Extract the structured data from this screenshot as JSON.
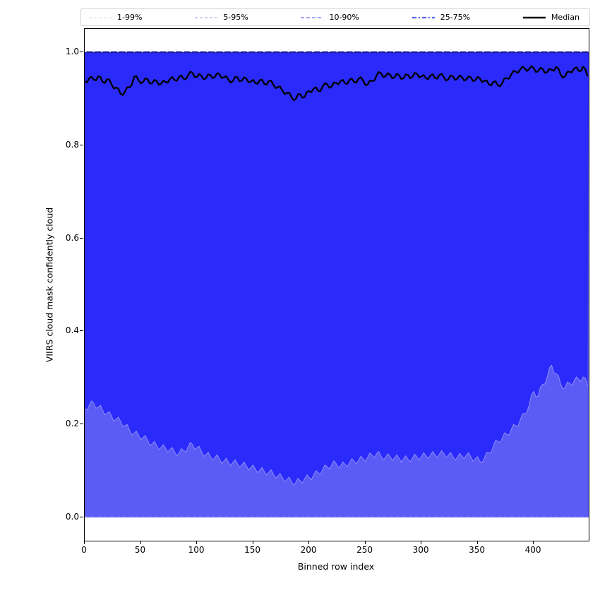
{
  "figure": {
    "background": "#ffffff"
  },
  "legend": {
    "items": [
      {
        "label": "1-99%",
        "color": "#d9d9f0",
        "dash": "4 3",
        "width": 1.1
      },
      {
        "label": "5-95%",
        "color": "#b2b2ec",
        "dash": "4 3",
        "width": 1.2
      },
      {
        "label": "10-90%",
        "color": "#8c8cf0",
        "dash": "5 3",
        "width": 1.5
      },
      {
        "label": "25-75%",
        "color": "#6060ee",
        "dash": "6 3 2 3",
        "width": 2.2
      },
      {
        "label": "Median",
        "color": "#000000",
        "dash": "",
        "width": 2.6
      }
    ]
  },
  "axes": {
    "xlabel": "Binned row index",
    "ylabel": "VIIRS cloud mask confidently cloud",
    "xticks": [
      0,
      50,
      100,
      150,
      200,
      250,
      300,
      350,
      400
    ],
    "yticks": [
      "0.0",
      "0.2",
      "0.4",
      "0.6",
      "0.8",
      "1.0"
    ],
    "xlim": [
      0,
      449
    ],
    "ylim": [
      -0.05,
      1.05
    ]
  },
  "colors": {
    "band_outer_fill": "#5b5bf6",
    "band_inner_fill": "#2a2bfa",
    "inner_edge_stroke": "#9a9af2",
    "bottom_edge_dash": "#c2c2fb",
    "top_edge_line": "#1e1e96",
    "top_edge_dash_gap": "#ffffff",
    "median_line": "#000000"
  },
  "chart_data": {
    "type": "area",
    "title": "",
    "xlabel": "Binned row index",
    "ylabel": "VIIRS cloud mask confidently cloud",
    "xlim": [
      0,
      449
    ],
    "ylim": [
      -0.05,
      1.05
    ],
    "grid": false,
    "legend_position": "top",
    "x": [
      0,
      4,
      8,
      12,
      16,
      20,
      24,
      28,
      32,
      36,
      40,
      44,
      48,
      52,
      56,
      60,
      64,
      68,
      72,
      76,
      80,
      84,
      88,
      92,
      96,
      100,
      104,
      108,
      112,
      116,
      120,
      124,
      128,
      132,
      136,
      140,
      144,
      148,
      152,
      156,
      160,
      164,
      168,
      172,
      176,
      180,
      184,
      188,
      192,
      196,
      200,
      204,
      208,
      212,
      216,
      220,
      224,
      228,
      232,
      236,
      240,
      244,
      248,
      252,
      256,
      260,
      264,
      268,
      272,
      276,
      280,
      284,
      288,
      292,
      296,
      300,
      304,
      308,
      312,
      316,
      320,
      324,
      328,
      332,
      336,
      340,
      344,
      348,
      352,
      356,
      360,
      364,
      368,
      372,
      376,
      380,
      384,
      388,
      392,
      396,
      400,
      404,
      408,
      412,
      416,
      420,
      424,
      428,
      432,
      436,
      440,
      444,
      448
    ],
    "bands": [
      {
        "name": "1-99%",
        "lower": 0.0,
        "upper": 1.0
      },
      {
        "name": "5-95%",
        "lower": 0.0,
        "upper": 1.0
      },
      {
        "name": "10-90%",
        "lower": 0.0,
        "upper": 1.0
      },
      {
        "name": "25-75%",
        "upper": 1.0,
        "lower": [
          0.234,
          0.241,
          0.246,
          0.237,
          0.231,
          0.224,
          0.217,
          0.211,
          0.206,
          0.198,
          0.187,
          0.181,
          0.176,
          0.172,
          0.166,
          0.158,
          0.155,
          0.15,
          0.149,
          0.146,
          0.141,
          0.138,
          0.144,
          0.151,
          0.157,
          0.15,
          0.142,
          0.135,
          0.131,
          0.129,
          0.126,
          0.121,
          0.119,
          0.118,
          0.116,
          0.113,
          0.111,
          0.107,
          0.104,
          0.102,
          0.099,
          0.097,
          0.094,
          0.089,
          0.086,
          0.081,
          0.078,
          0.075,
          0.079,
          0.083,
          0.086,
          0.091,
          0.096,
          0.103,
          0.109,
          0.113,
          0.116,
          0.111,
          0.114,
          0.118,
          0.121,
          0.123,
          0.126,
          0.129,
          0.134,
          0.137,
          0.132,
          0.129,
          0.131,
          0.128,
          0.127,
          0.126,
          0.125,
          0.128,
          0.13,
          0.131,
          0.133,
          0.134,
          0.135,
          0.136,
          0.137,
          0.134,
          0.131,
          0.129,
          0.132,
          0.134,
          0.13,
          0.126,
          0.121,
          0.127,
          0.139,
          0.153,
          0.164,
          0.171,
          0.179,
          0.189,
          0.197,
          0.209,
          0.223,
          0.242,
          0.271,
          0.261,
          0.286,
          0.302,
          0.327,
          0.309,
          0.287,
          0.279,
          0.289,
          0.293,
          0.297,
          0.302,
          0.283
        ]
      }
    ],
    "median": [
      0.937,
      0.944,
      0.941,
      0.948,
      0.936,
      0.942,
      0.93,
      0.924,
      0.91,
      0.916,
      0.924,
      0.947,
      0.94,
      0.936,
      0.942,
      0.933,
      0.938,
      0.932,
      0.936,
      0.943,
      0.94,
      0.947,
      0.943,
      0.95,
      0.956,
      0.947,
      0.949,
      0.944,
      0.951,
      0.947,
      0.953,
      0.946,
      0.941,
      0.938,
      0.946,
      0.939,
      0.943,
      0.937,
      0.934,
      0.94,
      0.932,
      0.938,
      0.93,
      0.925,
      0.918,
      0.912,
      0.905,
      0.899,
      0.91,
      0.904,
      0.916,
      0.922,
      0.917,
      0.926,
      0.931,
      0.926,
      0.934,
      0.938,
      0.933,
      0.941,
      0.936,
      0.943,
      0.939,
      0.93,
      0.938,
      0.95,
      0.955,
      0.948,
      0.952,
      0.946,
      0.951,
      0.944,
      0.951,
      0.947,
      0.954,
      0.948,
      0.944,
      0.95,
      0.945,
      0.951,
      0.946,
      0.942,
      0.948,
      0.943,
      0.947,
      0.941,
      0.946,
      0.94,
      0.944,
      0.938,
      0.931,
      0.936,
      0.929,
      0.934,
      0.944,
      0.952,
      0.958,
      0.963,
      0.965,
      0.964,
      0.966,
      0.959,
      0.964,
      0.957,
      0.962,
      0.968,
      0.952,
      0.948,
      0.958,
      0.965,
      0.96,
      0.969,
      0.948
    ]
  }
}
